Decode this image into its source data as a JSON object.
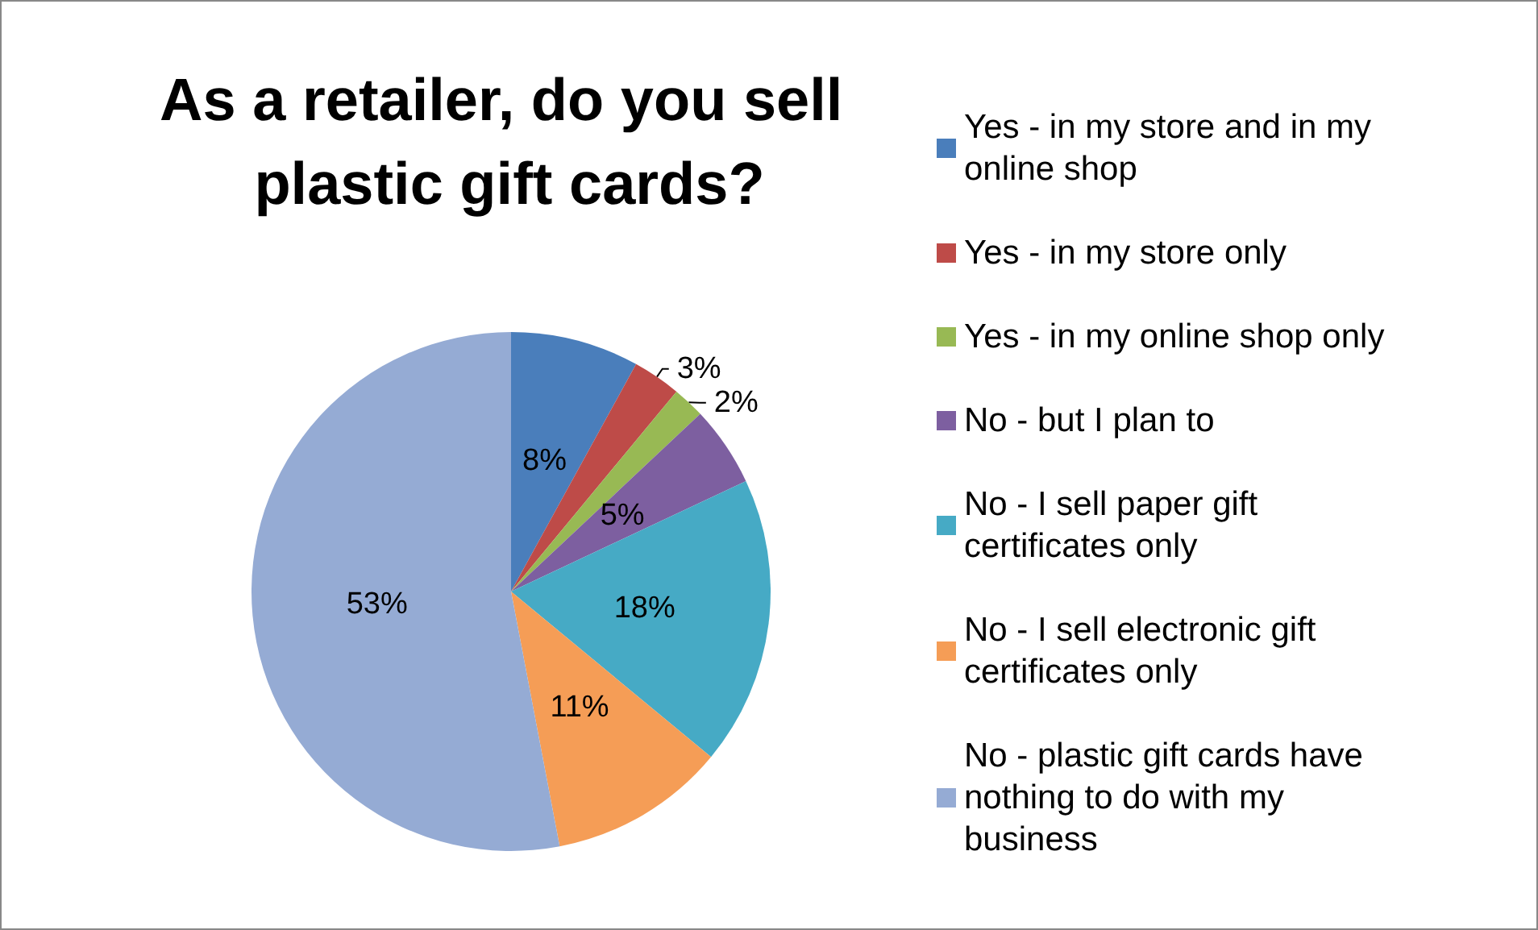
{
  "chart_data": {
    "type": "pie",
    "title": "As a retailer, do you sell plastic gift cards?",
    "categories": [
      "Yes - in my store and in my online shop",
      "Yes - in my store only",
      "Yes - in my online shop only",
      "No - but I plan to",
      "No - I sell paper gift certificates only",
      "No - I sell electronic gift certificates only",
      "No - plastic gift cards have nothing to do with my business"
    ],
    "values": [
      8,
      3,
      2,
      5,
      18,
      11,
      53
    ],
    "value_labels": [
      "8%",
      "3%",
      "2%",
      "5%",
      "18%",
      "11%",
      "53%"
    ],
    "colors": [
      "#4a7ebb",
      "#be4b48",
      "#98b954",
      "#7d5fa0",
      "#46aac5",
      "#f59d56",
      "#95abd4"
    ],
    "legend": "right"
  }
}
